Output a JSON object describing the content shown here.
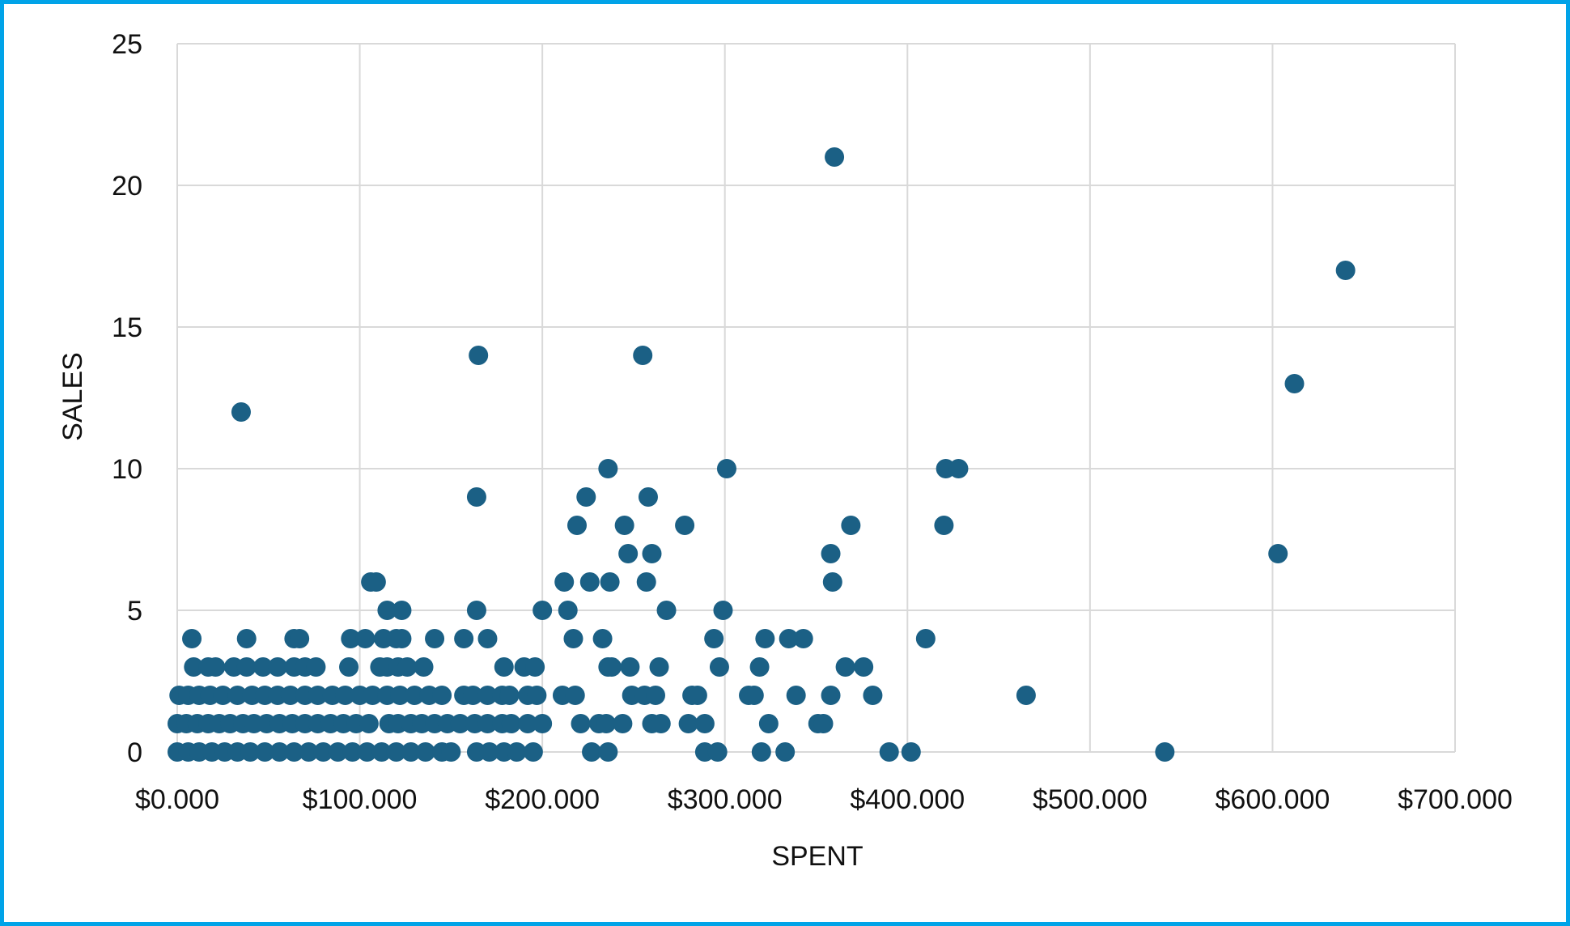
{
  "chart_data": {
    "type": "scatter",
    "xlabel": "SPENT",
    "ylabel": "SALES",
    "xlim": [
      0,
      700000
    ],
    "ylim": [
      0,
      25
    ],
    "x_ticks": [
      0,
      100000,
      200000,
      300000,
      400000,
      500000,
      600000,
      700000
    ],
    "x_tick_labels": [
      "$0.000",
      "$100.000",
      "$200.000",
      "$300.000",
      "$400.000",
      "$500.000",
      "$600.000",
      "$700.000"
    ],
    "y_ticks": [
      0,
      5,
      10,
      15,
      20,
      25
    ],
    "y_tick_labels": [
      "0",
      "5",
      "10",
      "15",
      "20",
      "25"
    ],
    "grid": true,
    "legend": "none",
    "marker_color": "#1b6085",
    "series": [
      {
        "points": [
          [
            35000,
            12
          ],
          [
            165000,
            14
          ],
          [
            255000,
            14
          ],
          [
            360000,
            21
          ],
          [
            640000,
            17
          ],
          [
            612000,
            13
          ],
          [
            603000,
            7
          ],
          [
            164000,
            9
          ],
          [
            236000,
            10
          ],
          [
            301000,
            10
          ],
          [
            421000,
            10
          ],
          [
            428000,
            10
          ],
          [
            224000,
            9
          ],
          [
            258000,
            9
          ],
          [
            219000,
            8
          ],
          [
            245000,
            8
          ],
          [
            278000,
            8
          ],
          [
            369000,
            8
          ],
          [
            420000,
            8
          ],
          [
            247000,
            7
          ],
          [
            260000,
            7
          ],
          [
            358000,
            7
          ],
          [
            106000,
            6
          ],
          [
            109000,
            6
          ],
          [
            212000,
            6
          ],
          [
            226000,
            6
          ],
          [
            237000,
            6
          ],
          [
            257000,
            6
          ],
          [
            359000,
            6
          ],
          [
            115000,
            5
          ],
          [
            123000,
            5
          ],
          [
            164000,
            5
          ],
          [
            200000,
            5
          ],
          [
            214000,
            5
          ],
          [
            268000,
            5
          ],
          [
            299000,
            5
          ],
          [
            8000,
            4
          ],
          [
            38000,
            4
          ],
          [
            64000,
            4
          ],
          [
            67000,
            4
          ],
          [
            95000,
            4
          ],
          [
            103000,
            4
          ],
          [
            113000,
            4
          ],
          [
            120000,
            4
          ],
          [
            123000,
            4
          ],
          [
            141000,
            4
          ],
          [
            157000,
            4
          ],
          [
            170000,
            4
          ],
          [
            217000,
            4
          ],
          [
            233000,
            4
          ],
          [
            294000,
            4
          ],
          [
            322000,
            4
          ],
          [
            335000,
            4
          ],
          [
            343000,
            4
          ],
          [
            410000,
            4
          ],
          [
            9000,
            3
          ],
          [
            17000,
            3
          ],
          [
            21000,
            3
          ],
          [
            31000,
            3
          ],
          [
            38000,
            3
          ],
          [
            47000,
            3
          ],
          [
            55000,
            3
          ],
          [
            64000,
            3
          ],
          [
            70000,
            3
          ],
          [
            76000,
            3
          ],
          [
            94000,
            3
          ],
          [
            111000,
            3
          ],
          [
            115000,
            3
          ],
          [
            121000,
            3
          ],
          [
            126000,
            3
          ],
          [
            135000,
            3
          ],
          [
            179000,
            3
          ],
          [
            190000,
            3
          ],
          [
            196000,
            3
          ],
          [
            236000,
            3
          ],
          [
            238000,
            3
          ],
          [
            248000,
            3
          ],
          [
            264000,
            3
          ],
          [
            297000,
            3
          ],
          [
            319000,
            3
          ],
          [
            366000,
            3
          ],
          [
            376000,
            3
          ],
          [
            1000,
            2
          ],
          [
            6000,
            2
          ],
          [
            12000,
            2
          ],
          [
            18000,
            2
          ],
          [
            25000,
            2
          ],
          [
            33000,
            2
          ],
          [
            41000,
            2
          ],
          [
            48000,
            2
          ],
          [
            55000,
            2
          ],
          [
            62000,
            2
          ],
          [
            70000,
            2
          ],
          [
            77000,
            2
          ],
          [
            85000,
            2
          ],
          [
            92000,
            2
          ],
          [
            100000,
            2
          ],
          [
            107000,
            2
          ],
          [
            115000,
            2
          ],
          [
            122000,
            2
          ],
          [
            130000,
            2
          ],
          [
            138000,
            2
          ],
          [
            145000,
            2
          ],
          [
            157000,
            2
          ],
          [
            162000,
            2
          ],
          [
            170000,
            2
          ],
          [
            178000,
            2
          ],
          [
            182000,
            2
          ],
          [
            192000,
            2
          ],
          [
            197000,
            2
          ],
          [
            211000,
            2
          ],
          [
            218000,
            2
          ],
          [
            249000,
            2
          ],
          [
            256000,
            2
          ],
          [
            262000,
            2
          ],
          [
            282000,
            2
          ],
          [
            285000,
            2
          ],
          [
            313000,
            2
          ],
          [
            316000,
            2
          ],
          [
            339000,
            2
          ],
          [
            358000,
            2
          ],
          [
            381000,
            2
          ],
          [
            465000,
            2
          ],
          [
            0,
            1
          ],
          [
            5000,
            1
          ],
          [
            11000,
            1
          ],
          [
            17000,
            1
          ],
          [
            23000,
            1
          ],
          [
            29000,
            1
          ],
          [
            36000,
            1
          ],
          [
            42000,
            1
          ],
          [
            49000,
            1
          ],
          [
            56000,
            1
          ],
          [
            63000,
            1
          ],
          [
            70000,
            1
          ],
          [
            77000,
            1
          ],
          [
            84000,
            1
          ],
          [
            91000,
            1
          ],
          [
            98000,
            1
          ],
          [
            105000,
            1
          ],
          [
            116000,
            1
          ],
          [
            121000,
            1
          ],
          [
            128000,
            1
          ],
          [
            134000,
            1
          ],
          [
            141000,
            1
          ],
          [
            148000,
            1
          ],
          [
            155000,
            1
          ],
          [
            163000,
            1
          ],
          [
            170000,
            1
          ],
          [
            178000,
            1
          ],
          [
            183000,
            1
          ],
          [
            192000,
            1
          ],
          [
            200000,
            1
          ],
          [
            221000,
            1
          ],
          [
            231000,
            1
          ],
          [
            235000,
            1
          ],
          [
            244000,
            1
          ],
          [
            260000,
            1
          ],
          [
            265000,
            1
          ],
          [
            280000,
            1
          ],
          [
            289000,
            1
          ],
          [
            324000,
            1
          ],
          [
            351000,
            1
          ],
          [
            354000,
            1
          ],
          [
            0,
            0
          ],
          [
            6000,
            0
          ],
          [
            12000,
            0
          ],
          [
            19000,
            0
          ],
          [
            26000,
            0
          ],
          [
            33000,
            0
          ],
          [
            40000,
            0
          ],
          [
            48000,
            0
          ],
          [
            56000,
            0
          ],
          [
            64000,
            0
          ],
          [
            72000,
            0
          ],
          [
            80000,
            0
          ],
          [
            88000,
            0
          ],
          [
            96000,
            0
          ],
          [
            104000,
            0
          ],
          [
            112000,
            0
          ],
          [
            120000,
            0
          ],
          [
            128000,
            0
          ],
          [
            136000,
            0
          ],
          [
            145000,
            0
          ],
          [
            150000,
            0
          ],
          [
            164000,
            0
          ],
          [
            171000,
            0
          ],
          [
            179000,
            0
          ],
          [
            186000,
            0
          ],
          [
            195000,
            0
          ],
          [
            227000,
            0
          ],
          [
            236000,
            0
          ],
          [
            289000,
            0
          ],
          [
            296000,
            0
          ],
          [
            320000,
            0
          ],
          [
            333000,
            0
          ],
          [
            390000,
            0
          ],
          [
            402000,
            0
          ],
          [
            541000,
            0
          ]
        ]
      }
    ]
  }
}
